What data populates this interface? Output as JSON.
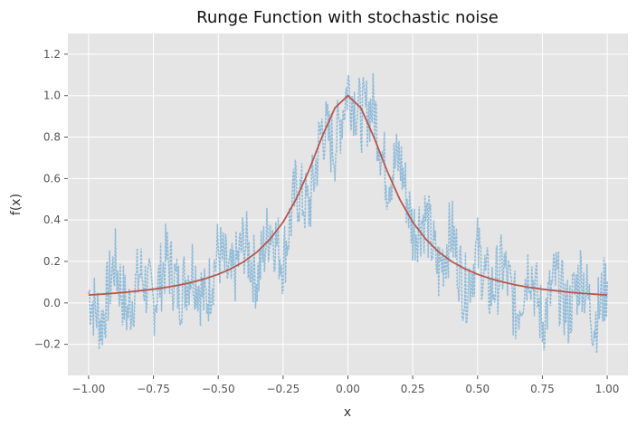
{
  "chart_data": {
    "type": "line",
    "title": "Runge Function with stochastic noise",
    "xlabel": "x",
    "ylabel": "f(x)",
    "xlim": [
      -1.08,
      1.08
    ],
    "ylim": [
      -0.35,
      1.3
    ],
    "grid": true,
    "legend": "none",
    "x_ticks": [
      -1.0,
      -0.75,
      -0.5,
      -0.25,
      0.0,
      0.25,
      0.5,
      0.75,
      1.0
    ],
    "x_tick_labels": [
      "−1.00",
      "−0.75",
      "−0.50",
      "−0.25",
      "0.00",
      "0.25",
      "0.50",
      "0.75",
      "1.00"
    ],
    "y_ticks": [
      -0.2,
      0.0,
      0.2,
      0.4,
      0.6,
      0.8,
      1.0,
      1.2
    ],
    "y_tick_labels": [
      "−0.2",
      "0.0",
      "0.2",
      "0.4",
      "0.6",
      "0.8",
      "1.0",
      "1.2"
    ],
    "series": [
      {
        "role": "noisy-samples",
        "style": "dotted",
        "color": "#92bcd9",
        "x": [
          -1.0,
          -0.95,
          -0.9,
          -0.85,
          -0.8,
          -0.75,
          -0.7,
          -0.65,
          -0.6,
          -0.55,
          -0.5,
          -0.45,
          -0.4,
          -0.35,
          -0.3,
          -0.25,
          -0.2,
          -0.15,
          -0.1,
          -0.05,
          0.0,
          0.05,
          0.1,
          0.15,
          0.2,
          0.25,
          0.3,
          0.35,
          0.4,
          0.45,
          0.5,
          0.55,
          0.6,
          0.65,
          0.7,
          0.75,
          0.8,
          0.85,
          0.9,
          0.95,
          1.0
        ],
        "y": [
          0.05,
          -0.1,
          0.2,
          -0.05,
          0.15,
          0.0,
          0.22,
          0.05,
          0.18,
          0.0,
          0.25,
          0.1,
          0.3,
          0.12,
          0.38,
          0.2,
          0.55,
          0.45,
          0.85,
          0.75,
          1.05,
          0.9,
          0.95,
          0.6,
          0.7,
          0.35,
          0.42,
          0.15,
          0.35,
          0.05,
          0.25,
          0.05,
          0.18,
          -0.05,
          0.2,
          -0.1,
          0.12,
          -0.05,
          0.15,
          -0.1,
          0.1
        ],
        "noise_amplitude": 0.18
      },
      {
        "role": "runge-function",
        "style": "solid",
        "color": "#b5574f",
        "x": [
          -1.0,
          -0.95,
          -0.9,
          -0.85,
          -0.8,
          -0.75,
          -0.7,
          -0.65,
          -0.6,
          -0.55,
          -0.5,
          -0.45,
          -0.4,
          -0.35,
          -0.3,
          -0.25,
          -0.2,
          -0.15,
          -0.1,
          -0.05,
          0.0,
          0.05,
          0.1,
          0.15,
          0.2,
          0.25,
          0.3,
          0.35,
          0.4,
          0.45,
          0.5,
          0.55,
          0.6,
          0.65,
          0.7,
          0.75,
          0.8,
          0.85,
          0.9,
          0.95,
          1.0
        ],
        "y": [
          0.038,
          0.042,
          0.047,
          0.052,
          0.059,
          0.066,
          0.075,
          0.086,
          0.1,
          0.117,
          0.138,
          0.165,
          0.2,
          0.246,
          0.308,
          0.39,
          0.5,
          0.64,
          0.8,
          0.941,
          1.0,
          0.941,
          0.8,
          0.64,
          0.5,
          0.39,
          0.308,
          0.246,
          0.2,
          0.165,
          0.138,
          0.117,
          0.1,
          0.086,
          0.075,
          0.066,
          0.059,
          0.052,
          0.047,
          0.042,
          0.038
        ]
      }
    ]
  }
}
